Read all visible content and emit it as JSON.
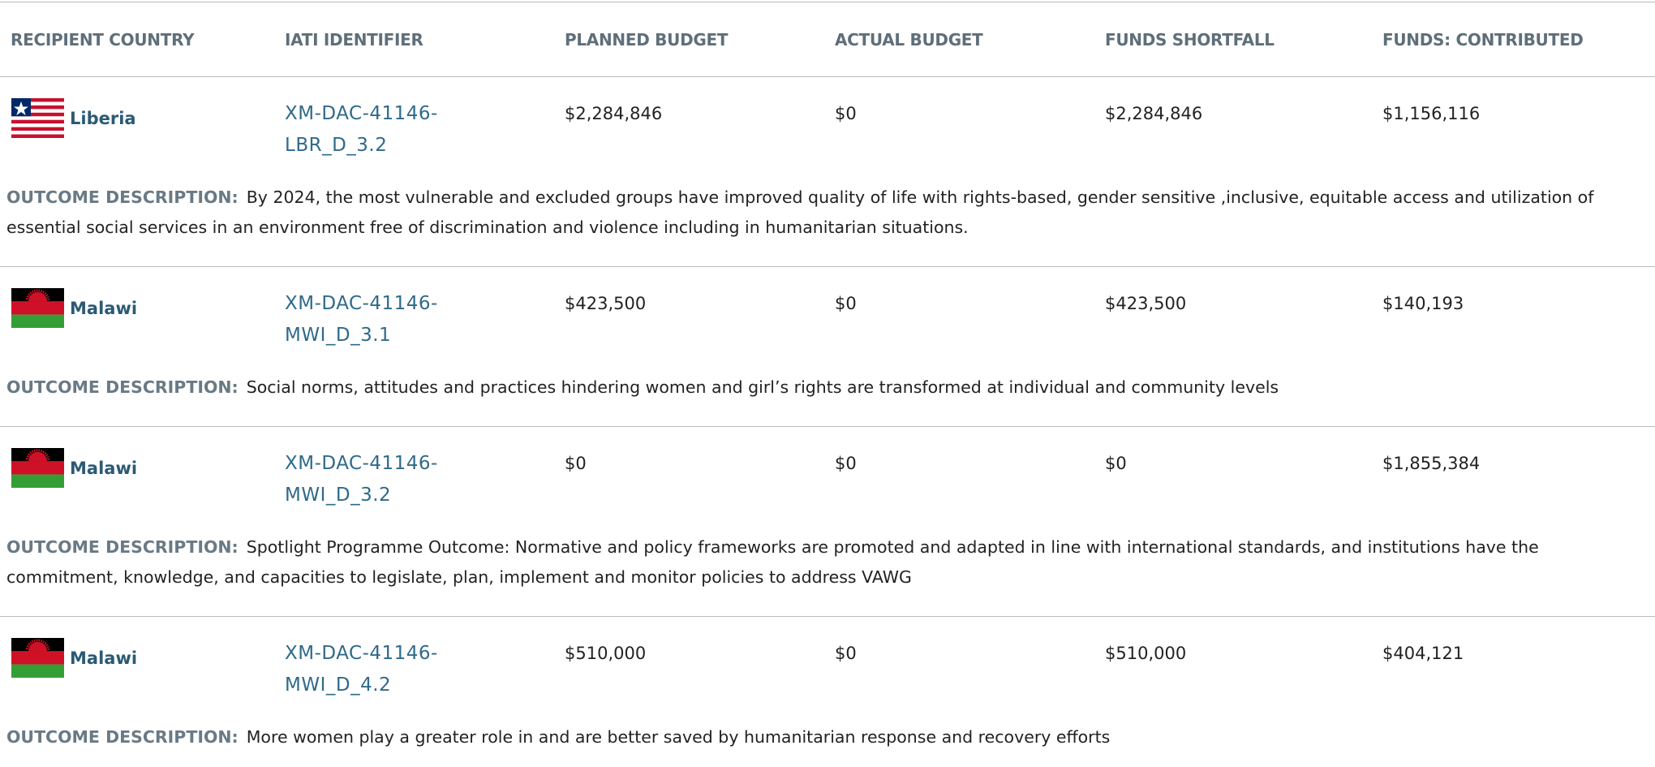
{
  "header": [
    "RECIPIENT COUNTRY",
    "IATI IDENTIFIER",
    "PLANNED BUDGET",
    "ACTUAL BUDGET",
    "FUNDS SHORTFALL",
    "FUNDS: CONTRIBUTED"
  ],
  "outcome_label": "OUTCOME DESCRIPTION:",
  "rows": [
    {
      "country": "Liberia",
      "identifier": [
        "XM-DAC-41146-",
        "LBR_D_3.2"
      ],
      "planned": "$2,284,846",
      "actual": "$0",
      "shortfall": "$2,284,846",
      "contributed": "$1,156,116",
      "outcome": "By 2024, the most vulnerable and excluded groups have improved quality of life with rights-based, gender sensitive ,inclusive, equitable access and utilization of essential social services in an environment free of discrimination and violence including in humanitarian situations."
    },
    {
      "country": "Malawi",
      "identifier": [
        "XM-DAC-41146-",
        "MWI_D_3.1"
      ],
      "planned": "$423,500",
      "actual": "$0",
      "shortfall": "$423,500",
      "contributed": "$140,193",
      "outcome": "Social norms, attitudes and practices hindering women and girl’s rights are transformed at individual and community levels"
    },
    {
      "country": "Malawi",
      "identifier": [
        "XM-DAC-41146-",
        "MWI_D_3.2"
      ],
      "planned": "$0",
      "actual": "$0",
      "shortfall": "$0",
      "contributed": "$1,855,384",
      "outcome": "Spotlight Programme Outcome: Normative and policy frameworks are promoted and adapted in line with international standards, and institutions have the commitment, knowledge, and capacities to legislate, plan, implement and monitor policies to address VAWG"
    },
    {
      "country": "Malawi",
      "identifier": [
        "XM-DAC-41146-",
        "MWI_D_4.2"
      ],
      "planned": "$510,000",
      "actual": "$0",
      "shortfall": "$510,000",
      "contributed": "$404,121",
      "outcome": "More women play a greater role in and are better saved by humanitarian response and recovery efforts"
    }
  ]
}
